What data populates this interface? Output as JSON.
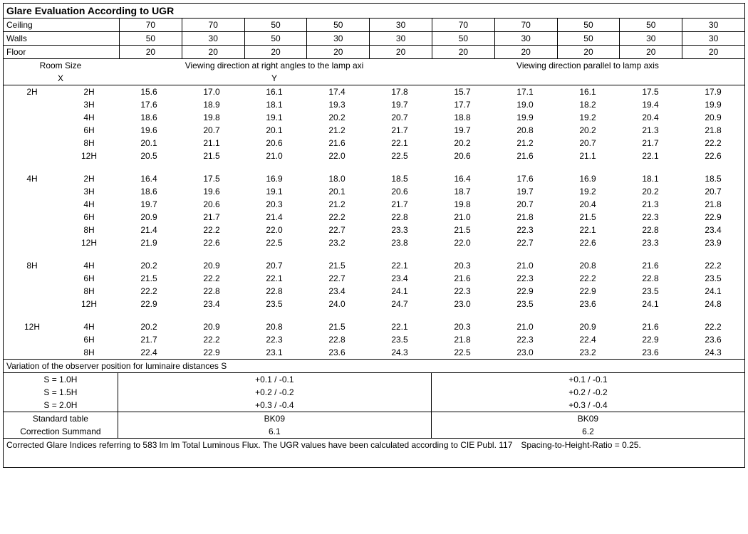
{
  "title": "Glare Evaluation According to UGR",
  "reflectances": {
    "ceiling_label": "Ceiling",
    "walls_label": "Walls",
    "floor_label": "Floor",
    "ceiling": [
      "70",
      "70",
      "50",
      "50",
      "30",
      "70",
      "70",
      "50",
      "50",
      "30"
    ],
    "walls": [
      "50",
      "30",
      "50",
      "30",
      "30",
      "50",
      "30",
      "50",
      "30",
      "30"
    ],
    "floor": [
      "20",
      "20",
      "20",
      "20",
      "20",
      "20",
      "20",
      "20",
      "20",
      "20"
    ]
  },
  "room_header": {
    "room_size": "Room Size",
    "x": "X",
    "y": "Y",
    "left_title": "Viewing direction at right angles to the lamp axi",
    "right_title": "Viewing direction parallel to lamp axis"
  },
  "groups": [
    {
      "x": "2H",
      "rows": [
        {
          "y": "2H",
          "v": [
            "15.6",
            "17.0",
            "16.1",
            "17.4",
            "17.8",
            "15.7",
            "17.1",
            "16.1",
            "17.5",
            "17.9"
          ]
        },
        {
          "y": "3H",
          "v": [
            "17.6",
            "18.9",
            "18.1",
            "19.3",
            "19.7",
            "17.7",
            "19.0",
            "18.2",
            "19.4",
            "19.9"
          ]
        },
        {
          "y": "4H",
          "v": [
            "18.6",
            "19.8",
            "19.1",
            "20.2",
            "20.7",
            "18.8",
            "19.9",
            "19.2",
            "20.4",
            "20.9"
          ]
        },
        {
          "y": "6H",
          "v": [
            "19.6",
            "20.7",
            "20.1",
            "21.2",
            "21.7",
            "19.7",
            "20.8",
            "20.2",
            "21.3",
            "21.8"
          ]
        },
        {
          "y": "8H",
          "v": [
            "20.1",
            "21.1",
            "20.6",
            "21.6",
            "22.1",
            "20.2",
            "21.2",
            "20.7",
            "21.7",
            "22.2"
          ]
        },
        {
          "y": "12H",
          "v": [
            "20.5",
            "21.5",
            "21.0",
            "22.0",
            "22.5",
            "20.6",
            "21.6",
            "21.1",
            "22.1",
            "22.6"
          ]
        }
      ]
    },
    {
      "x": "4H",
      "rows": [
        {
          "y": "2H",
          "v": [
            "16.4",
            "17.5",
            "16.9",
            "18.0",
            "18.5",
            "16.4",
            "17.6",
            "16.9",
            "18.1",
            "18.5"
          ]
        },
        {
          "y": "3H",
          "v": [
            "18.6",
            "19.6",
            "19.1",
            "20.1",
            "20.6",
            "18.7",
            "19.7",
            "19.2",
            "20.2",
            "20.7"
          ]
        },
        {
          "y": "4H",
          "v": [
            "19.7",
            "20.6",
            "20.3",
            "21.2",
            "21.7",
            "19.8",
            "20.7",
            "20.4",
            "21.3",
            "21.8"
          ]
        },
        {
          "y": "6H",
          "v": [
            "20.9",
            "21.7",
            "21.4",
            "22.2",
            "22.8",
            "21.0",
            "21.8",
            "21.5",
            "22.3",
            "22.9"
          ]
        },
        {
          "y": "8H",
          "v": [
            "21.4",
            "22.2",
            "22.0",
            "22.7",
            "23.3",
            "21.5",
            "22.3",
            "22.1",
            "22.8",
            "23.4"
          ]
        },
        {
          "y": "12H",
          "v": [
            "21.9",
            "22.6",
            "22.5",
            "23.2",
            "23.8",
            "22.0",
            "22.7",
            "22.6",
            "23.3",
            "23.9"
          ]
        }
      ]
    },
    {
      "x": "8H",
      "rows": [
        {
          "y": "4H",
          "v": [
            "20.2",
            "20.9",
            "20.7",
            "21.5",
            "22.1",
            "20.3",
            "21.0",
            "20.8",
            "21.6",
            "22.2"
          ]
        },
        {
          "y": "6H",
          "v": [
            "21.5",
            "22.2",
            "22.1",
            "22.7",
            "23.4",
            "21.6",
            "22.3",
            "22.2",
            "22.8",
            "23.5"
          ]
        },
        {
          "y": "8H",
          "v": [
            "22.2",
            "22.8",
            "22.8",
            "23.4",
            "24.1",
            "22.3",
            "22.9",
            "22.9",
            "23.5",
            "24.1"
          ]
        },
        {
          "y": "12H",
          "v": [
            "22.9",
            "23.4",
            "23.5",
            "24.0",
            "24.7",
            "23.0",
            "23.5",
            "23.6",
            "24.1",
            "24.8"
          ]
        }
      ]
    },
    {
      "x": "12H",
      "rows": [
        {
          "y": "4H",
          "v": [
            "20.2",
            "20.9",
            "20.8",
            "21.5",
            "22.1",
            "20.3",
            "21.0",
            "20.9",
            "21.6",
            "22.2"
          ]
        },
        {
          "y": "6H",
          "v": [
            "21.7",
            "22.2",
            "22.3",
            "22.8",
            "23.5",
            "21.8",
            "22.3",
            "22.4",
            "22.9",
            "23.6"
          ]
        },
        {
          "y": "8H",
          "v": [
            "22.4",
            "22.9",
            "23.1",
            "23.6",
            "24.3",
            "22.5",
            "23.0",
            "23.2",
            "23.6",
            "24.3"
          ]
        }
      ]
    }
  ],
  "variation": {
    "title": "Variation of the observer position for luminaire distances S",
    "rows": [
      {
        "s": "S = 1.0H",
        "left": "+0.1 / -0.1",
        "right": "+0.1 / -0.1"
      },
      {
        "s": "S = 1.5H",
        "left": "+0.2 / -0.2",
        "right": "+0.2 / -0.2"
      },
      {
        "s": "S = 2.0H",
        "left": "+0.3 / -0.4",
        "right": "+0.3 / -0.4"
      }
    ]
  },
  "std": {
    "standard_table": "Standard table",
    "correction_summand": "Correction Summand",
    "left_table": "BK09",
    "right_table": "BK09",
    "left_corr": "6.1",
    "right_corr": "6.2"
  },
  "footnote": "Corrected Glare Indices referring to 583 lm lm Total Luminous Flux. The UGR values have been calculated according to CIE Publ. 117 Spacing-to-Height-Ratio = 0.25."
}
